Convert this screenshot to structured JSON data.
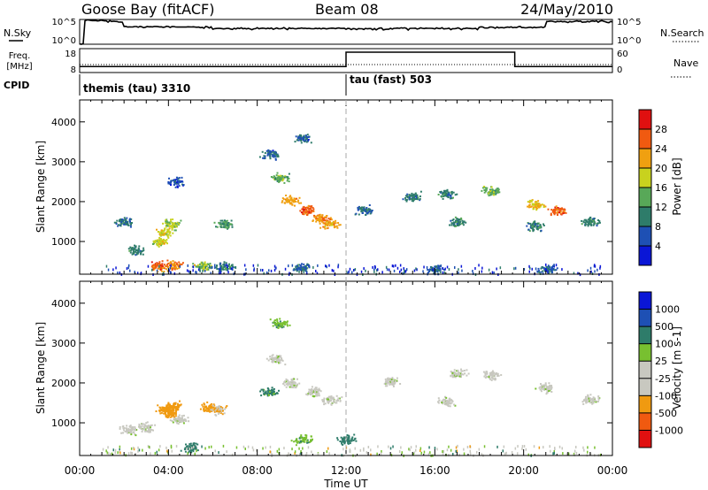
{
  "header": {
    "radar": "Goose Bay (fitACF)",
    "beam": "Beam 08",
    "date": "24/May/2010"
  },
  "strip_labels": {
    "nsky": "N.Sky",
    "nsky_hi": "10^5",
    "nsky_lo": "10^0",
    "nsearch": "N.Search",
    "nsearch_hi": "10^5",
    "nsearch_lo": "10^0",
    "freq_line1": "Freq.",
    "freq_line2": "[MHz]",
    "freq_hi": "18",
    "freq_lo": "8",
    "nave": "Nave",
    "nave_hi": "60",
    "nave_lo": "0",
    "cpid": "CPID"
  },
  "cpid_modes": [
    {
      "label": "themis (tau) 3310",
      "start_hour": 0
    },
    {
      "label": "tau (fast) 503",
      "start_hour": 12
    }
  ],
  "colors": {
    "power_scale": [
      "#0a16d6",
      "#1e50b4",
      "#2e7c6a",
      "#58a858",
      "#c8d21e",
      "#f0a010",
      "#f05a10",
      "#e01010"
    ],
    "velocity_scale": [
      "#e01010",
      "#f05a10",
      "#f09a10",
      "#c8c8c0",
      "#c8c8c0",
      "#78c030",
      "#2e7c6a",
      "#1e50b4",
      "#0a16d6"
    ]
  },
  "chart_data": [
    {
      "type": "heatmap",
      "name": "power",
      "ylabel": "Slant Range [km]",
      "ylim": [
        180,
        4550
      ],
      "yticks": [
        1000,
        2000,
        3000,
        4000
      ],
      "xlim": [
        0,
        24
      ],
      "colorbar_label": "Power [dB]",
      "colorbar_ticks": [
        "4",
        "8",
        "12",
        "16",
        "20",
        "24",
        "28"
      ],
      "data": [
        [
          3.5,
          400,
          26
        ],
        [
          4.2,
          420,
          24
        ],
        [
          5.5,
          400,
          16
        ],
        [
          6.5,
          380,
          10
        ],
        [
          10,
          350,
          8
        ],
        [
          16,
          320,
          8
        ],
        [
          21,
          320,
          8
        ],
        [
          3.6,
          1000,
          18
        ],
        [
          3.8,
          1250,
          18
        ],
        [
          4.1,
          1450,
          16
        ],
        [
          2.5,
          800,
          10
        ],
        [
          6.5,
          1450,
          12
        ],
        [
          9.5,
          2050,
          22
        ],
        [
          10.2,
          1800,
          26
        ],
        [
          10.8,
          1600,
          24
        ],
        [
          11.3,
          1450,
          22
        ],
        [
          9,
          2600,
          14
        ],
        [
          8.6,
          3200,
          8
        ],
        [
          10,
          3600,
          8
        ],
        [
          12.8,
          1800,
          8
        ],
        [
          15,
          2150,
          10
        ],
        [
          16.5,
          2200,
          10
        ],
        [
          18.5,
          2300,
          14
        ],
        [
          17,
          1500,
          10
        ],
        [
          20.5,
          1950,
          20
        ],
        [
          21.5,
          1800,
          26
        ],
        [
          23,
          1500,
          10
        ],
        [
          20.5,
          1400,
          10
        ],
        [
          2,
          1500,
          8
        ],
        [
          4.3,
          2500,
          6
        ]
      ]
    },
    {
      "type": "heatmap",
      "name": "velocity",
      "ylabel": "Slant Range [km]",
      "ylim": [
        180,
        4550
      ],
      "yticks": [
        1000,
        2000,
        3000,
        4000
      ],
      "xlim": [
        0,
        24
      ],
      "xlabel": "Time UT",
      "xticks": [
        "00:00",
        "04:00",
        "08:00",
        "12:00",
        "16:00",
        "20:00",
        "00:00"
      ],
      "colorbar_label": "Velocity [m s-1]",
      "colorbar_ticks": [
        "1000",
        "500",
        "100",
        "25",
        "-25",
        "-100",
        "-500",
        "-1000"
      ],
      "data": [
        [
          3.8,
          1350,
          -200
        ],
        [
          4.2,
          1450,
          -300
        ],
        [
          4.0,
          1250,
          -150
        ],
        [
          5.8,
          1400,
          -150
        ],
        [
          6.2,
          1350,
          -100
        ],
        [
          3.0,
          900,
          0
        ],
        [
          2.2,
          850,
          0
        ],
        [
          4.5,
          1100,
          0
        ],
        [
          9.5,
          2000,
          0
        ],
        [
          10.5,
          1800,
          0
        ],
        [
          11.3,
          1600,
          0
        ],
        [
          8.8,
          2600,
          0
        ],
        [
          14,
          2050,
          0
        ],
        [
          17,
          2250,
          0
        ],
        [
          18.5,
          2200,
          0
        ],
        [
          21,
          1900,
          0
        ],
        [
          23,
          1600,
          0
        ],
        [
          16.5,
          1550,
          0
        ],
        [
          8.5,
          1800,
          120
        ],
        [
          9.0,
          3500,
          80
        ],
        [
          10,
          600,
          80
        ],
        [
          5,
          400,
          200
        ],
        [
          12,
          600,
          150
        ]
      ]
    }
  ]
}
